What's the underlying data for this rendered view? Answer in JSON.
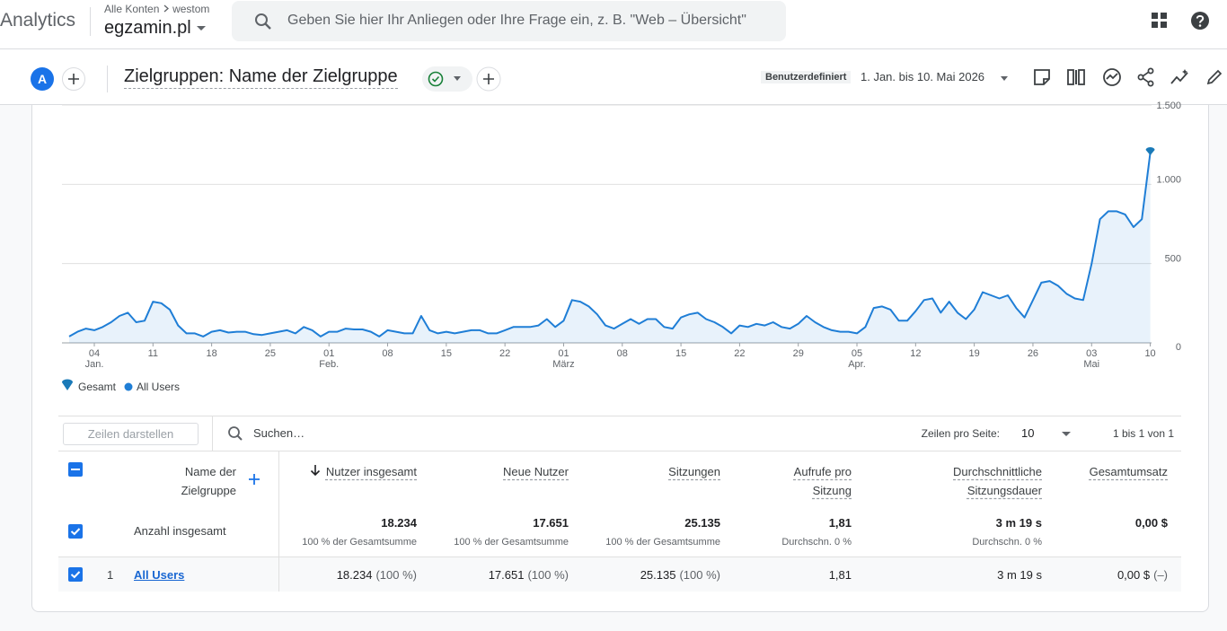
{
  "header": {
    "product": "Analytics",
    "breadcrumb": [
      "Alle Konten",
      "westom"
    ],
    "property": "egzamin.pl",
    "search_placeholder": "Geben Sie hier Ihr Anliegen oder Ihre Frage ein, z. B. \"Web – Übersicht\""
  },
  "toolbar": {
    "avatar": "A",
    "title": "Zielgruppen: Name der Zielgruppe",
    "date_label": "Benutzerdefiniert",
    "date_range": "1. Jan. bis 10. Mai 2026"
  },
  "chart_data": {
    "type": "line",
    "legend_total": "Gesamt",
    "total_color": "#1a7ab8",
    "x": [
      "2026-01-01",
      "2026-01-02",
      "2026-01-03",
      "2026-01-04",
      "2026-01-05",
      "2026-01-06",
      "2026-01-07",
      "2026-01-08",
      "2026-01-09",
      "2026-01-10",
      "2026-01-11",
      "2026-01-12",
      "2026-01-13",
      "2026-01-14",
      "2026-01-15",
      "2026-01-16",
      "2026-01-17",
      "2026-01-18",
      "2026-01-19",
      "2026-01-20",
      "2026-01-21",
      "2026-01-22",
      "2026-01-23",
      "2026-01-24",
      "2026-01-25",
      "2026-01-26",
      "2026-01-27",
      "2026-01-28",
      "2026-01-29",
      "2026-01-30",
      "2026-01-31",
      "2026-02-01",
      "2026-02-02",
      "2026-02-03",
      "2026-02-04",
      "2026-02-05",
      "2026-02-06",
      "2026-02-07",
      "2026-02-08",
      "2026-02-09",
      "2026-02-10",
      "2026-02-11",
      "2026-02-12",
      "2026-02-13",
      "2026-02-14",
      "2026-02-15",
      "2026-02-16",
      "2026-02-17",
      "2026-02-18",
      "2026-02-19",
      "2026-02-20",
      "2026-02-21",
      "2026-02-22",
      "2026-02-23",
      "2026-02-24",
      "2026-02-25",
      "2026-02-26",
      "2026-02-27",
      "2026-02-28",
      "2026-03-01",
      "2026-03-02",
      "2026-03-03",
      "2026-03-04",
      "2026-03-05",
      "2026-03-06",
      "2026-03-07",
      "2026-03-08",
      "2026-03-09",
      "2026-03-10",
      "2026-03-11",
      "2026-03-12",
      "2026-03-13",
      "2026-03-14",
      "2026-03-15",
      "2026-03-16",
      "2026-03-17",
      "2026-03-18",
      "2026-03-19",
      "2026-03-20",
      "2026-03-21",
      "2026-03-22",
      "2026-03-23",
      "2026-03-24",
      "2026-03-25",
      "2026-03-26",
      "2026-03-27",
      "2026-03-28",
      "2026-03-29",
      "2026-03-30",
      "2026-03-31",
      "2026-04-01",
      "2026-04-02",
      "2026-04-03",
      "2026-04-04",
      "2026-04-05",
      "2026-04-06",
      "2026-04-07",
      "2026-04-08",
      "2026-04-09",
      "2026-04-10",
      "2026-04-11",
      "2026-04-12",
      "2026-04-13",
      "2026-04-14",
      "2026-04-15",
      "2026-04-16",
      "2026-04-17",
      "2026-04-18",
      "2026-04-19",
      "2026-04-20",
      "2026-04-21",
      "2026-04-22",
      "2026-04-23",
      "2026-04-24",
      "2026-04-25",
      "2026-04-26",
      "2026-04-27",
      "2026-04-28",
      "2026-04-29",
      "2026-04-30",
      "2026-05-01",
      "2026-05-02",
      "2026-05-03",
      "2026-05-04",
      "2026-05-05",
      "2026-05-06",
      "2026-05-07",
      "2026-05-08",
      "2026-05-09",
      "2026-05-10"
    ],
    "series": [
      {
        "name": "All Users",
        "color": "#1f7ed6",
        "values": [
          40,
          70,
          90,
          80,
          100,
          130,
          170,
          190,
          130,
          140,
          260,
          250,
          210,
          110,
          60,
          60,
          40,
          70,
          80,
          65,
          70,
          70,
          55,
          50,
          60,
          70,
          80,
          60,
          100,
          80,
          40,
          70,
          70,
          90,
          85,
          85,
          70,
          40,
          80,
          70,
          60,
          60,
          170,
          80,
          60,
          70,
          60,
          70,
          80,
          80,
          60,
          60,
          80,
          100,
          100,
          100,
          110,
          150,
          100,
          140,
          270,
          260,
          230,
          180,
          110,
          90,
          120,
          150,
          120,
          150,
          150,
          100,
          90,
          160,
          180,
          190,
          150,
          130,
          100,
          60,
          110,
          100,
          120,
          110,
          130,
          100,
          90,
          120,
          170,
          130,
          100,
          80,
          70,
          70,
          60,
          100,
          220,
          230,
          210,
          140,
          140,
          200,
          270,
          280,
          190,
          260,
          190,
          150,
          210,
          320,
          300,
          280,
          300,
          220,
          160,
          270,
          380,
          390,
          360,
          310,
          280,
          270,
          500,
          780,
          830,
          830,
          810,
          730,
          780,
          1200
        ]
      }
    ],
    "ylim": [
      0,
      1500
    ],
    "yticks": [
      0,
      500,
      {
        "value": 1000,
        "label": "1.000"
      },
      {
        "value": 1500,
        "label": "1.500"
      }
    ],
    "xticks": [
      {
        "value": "2026-01-04",
        "label": "04",
        "month": "Jan."
      },
      {
        "value": "2026-01-11",
        "label": "11"
      },
      {
        "value": "2026-01-18",
        "label": "18"
      },
      {
        "value": "2026-01-25",
        "label": "25"
      },
      {
        "value": "2026-02-01",
        "label": "01",
        "month": "Feb."
      },
      {
        "value": "2026-02-08",
        "label": "08"
      },
      {
        "value": "2026-02-15",
        "label": "15"
      },
      {
        "value": "2026-02-22",
        "label": "22"
      },
      {
        "value": "2026-03-01",
        "label": "01",
        "month": "März"
      },
      {
        "value": "2026-03-08",
        "label": "08"
      },
      {
        "value": "2026-03-15",
        "label": "15"
      },
      {
        "value": "2026-03-22",
        "label": "22"
      },
      {
        "value": "2026-03-29",
        "label": "29"
      },
      {
        "value": "2026-04-05",
        "label": "05",
        "month": "Apr."
      },
      {
        "value": "2026-04-12",
        "label": "12"
      },
      {
        "value": "2026-04-19",
        "label": "19"
      },
      {
        "value": "2026-04-26",
        "label": "26"
      },
      {
        "value": "2026-05-03",
        "label": "03",
        "month": "Mai"
      },
      {
        "value": "2026-05-10",
        "label": "10"
      }
    ],
    "grid": true
  },
  "table": {
    "show_rows_button": "Zeilen darstellen",
    "search_placeholder": "Suchen…",
    "rows_per_page_label": "Zeilen pro Seite:",
    "rows_per_page": 10,
    "pagination": "1 bis 1 von 1",
    "columns": [
      "Name der Zielgruppe",
      "Nutzer insgesamt",
      "Neue Nutzer",
      "Sitzungen",
      "Aufrufe pro Sitzung",
      "Durchschnittliche Sitzungsdauer",
      "Gesamtumsatz"
    ],
    "totals": {
      "label": "Anzahl insgesamt",
      "cells": [
        {
          "value": "18.234",
          "note": "100 % der Gesamtsumme"
        },
        {
          "value": "17.651",
          "note": "100 % der Gesamtsumme"
        },
        {
          "value": "25.135",
          "note": "100 % der Gesamtsumme"
        },
        {
          "value": "1,81",
          "note": "Durchschn. 0 %"
        },
        {
          "value": "3 m 19 s",
          "note": "Durchschn. 0 %"
        },
        {
          "value": "0,00 $"
        }
      ]
    },
    "rows": [
      {
        "index": 1,
        "name": "All Users",
        "cells": [
          {
            "value": "18.234",
            "share": "(100 %)"
          },
          {
            "value": "17.651",
            "share": "(100 %)"
          },
          {
            "value": "25.135",
            "share": "(100 %)"
          },
          {
            "value": "1,81"
          },
          {
            "value": "3 m 19 s"
          },
          {
            "value": "0,00 $",
            "share": "(–)"
          }
        ]
      }
    ]
  }
}
